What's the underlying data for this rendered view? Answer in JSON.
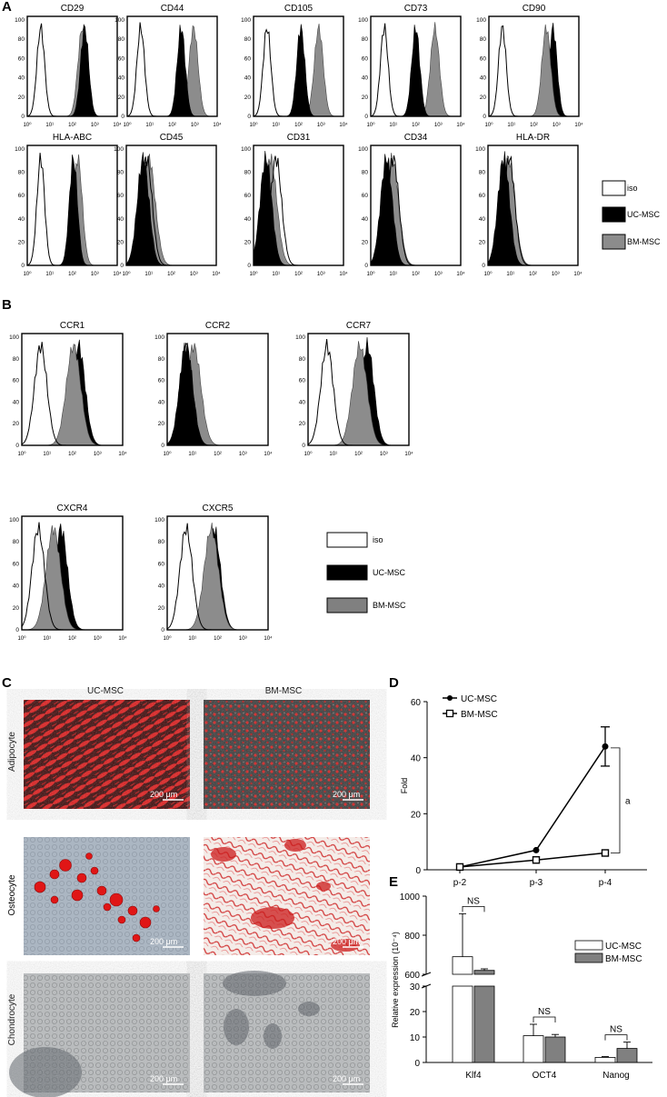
{
  "panels": {
    "A": "A",
    "B": "B",
    "C": "C",
    "D": "D",
    "E": "E"
  },
  "flow_y_ticks": [
    "0",
    "20",
    "40",
    "60",
    "80",
    "100"
  ],
  "flow_x_ticks": [
    "10⁰",
    "10¹",
    "10²",
    "10³",
    "10⁴"
  ],
  "flow_legend": [
    {
      "label": "iso",
      "color": "#ffffff"
    },
    {
      "label": "UC-MSC",
      "color": "#000000"
    },
    {
      "label": "BM-MSC",
      "color": "#8c8c8c"
    }
  ],
  "histograms": [
    {
      "panel": "A",
      "marker": "CD29",
      "iso_peak": 0.6,
      "uc_peak": 2.55,
      "bm_peak": 2.45,
      "front": "uc"
    },
    {
      "panel": "A",
      "marker": "CD44",
      "iso_peak": 0.6,
      "uc_peak": 2.4,
      "bm_peak": 2.95,
      "front": "uc"
    },
    {
      "panel": "A",
      "marker": "CD105",
      "iso_peak": 0.6,
      "uc_peak": 2.1,
      "bm_peak": 2.9,
      "front": "uc"
    },
    {
      "panel": "A",
      "marker": "CD73",
      "iso_peak": 0.6,
      "uc_peak": 2.0,
      "bm_peak": 2.85,
      "front": "uc"
    },
    {
      "panel": "A",
      "marker": "CD90",
      "iso_peak": 0.6,
      "uc_peak": 2.85,
      "bm_peak": 2.55,
      "front": "bm"
    },
    {
      "panel": "A",
      "marker": "HLA-ABC",
      "iso_peak": 0.6,
      "uc_peak": 2.05,
      "bm_peak": 2.25,
      "front": "uc"
    },
    {
      "panel": "A",
      "marker": "CD45",
      "iso_peak": 0.9,
      "uc_peak": 0.75,
      "bm_peak": 1.0,
      "front": "uc"
    },
    {
      "panel": "A",
      "marker": "CD31",
      "iso_peak": 1.0,
      "uc_peak": 0.55,
      "bm_peak": 0.75,
      "front": "uc"
    },
    {
      "panel": "A",
      "marker": "CD34",
      "iso_peak": 1.0,
      "uc_peak": 0.7,
      "bm_peak": 0.95,
      "front": "uc"
    },
    {
      "panel": "A",
      "marker": "HLA-DR",
      "iso_peak": 0.95,
      "uc_peak": 0.7,
      "bm_peak": 0.9,
      "front": "uc"
    },
    {
      "panel": "B",
      "marker": "CCR1",
      "iso_peak": 0.75,
      "uc_peak": 2.25,
      "bm_peak": 2.05,
      "front": "bm"
    },
    {
      "panel": "B",
      "marker": "CCR2",
      "iso_peak": 0.75,
      "uc_peak": 0.75,
      "bm_peak": 1.05,
      "front": "uc"
    },
    {
      "panel": "B",
      "marker": "CCR7",
      "iso_peak": 0.75,
      "uc_peak": 2.35,
      "bm_peak": 2.05,
      "front": "bm"
    },
    {
      "panel": "B",
      "marker": "CXCR4",
      "iso_peak": 0.65,
      "uc_peak": 1.55,
      "bm_peak": 1.25,
      "front": "bm"
    },
    {
      "panel": "B",
      "marker": "CXCR5",
      "iso_peak": 0.75,
      "uc_peak": 1.85,
      "bm_peak": 1.75,
      "front": "bm"
    }
  ],
  "micrographs": {
    "columns": [
      "UC-MSC",
      "BM-MSC"
    ],
    "rows": [
      "Adipocyte",
      "Osteocyte",
      "Chondrocyte"
    ],
    "scale_bar": "200 μm"
  },
  "chart_data": [
    {
      "type": "line",
      "panel": "D",
      "categories": [
        "p-2",
        "p-3",
        "p-4"
      ],
      "ylabel": "Fold",
      "ylim": [
        0,
        60
      ],
      "yticks": [
        "0",
        "20",
        "40",
        "60"
      ],
      "series": [
        {
          "name": "UC-MSC",
          "values": [
            1,
            7,
            44
          ],
          "errors": [
            0,
            0,
            7
          ],
          "marker": "filled circle"
        },
        {
          "name": "BM-MSC",
          "values": [
            1,
            3.5,
            6
          ],
          "errors": [
            0,
            0,
            0
          ],
          "marker": "open square"
        }
      ],
      "annotation": "a",
      "legend": "top-left"
    },
    {
      "type": "bar",
      "panel": "E",
      "categories": [
        "Klf4",
        "OCT4",
        "Nanog"
      ],
      "ylabel": "Relative expression (10⁻⁴)",
      "axis_break": [
        30,
        600
      ],
      "yticks": [
        "0",
        "10",
        "20",
        "30",
        "600",
        "800",
        "1000"
      ],
      "series": [
        {
          "name": "UC-MSC",
          "values": [
            690,
            10.5,
            2
          ],
          "errors": [
            220,
            4.5,
            0.3
          ],
          "color": "#ffffff"
        },
        {
          "name": "BM-MSC",
          "values": [
            620,
            10,
            5.5
          ],
          "errors": [
            8,
            1,
            2.5
          ],
          "color": "#808080"
        }
      ],
      "significance": [
        "NS",
        "NS",
        "NS"
      ],
      "legend": "top-right"
    }
  ]
}
